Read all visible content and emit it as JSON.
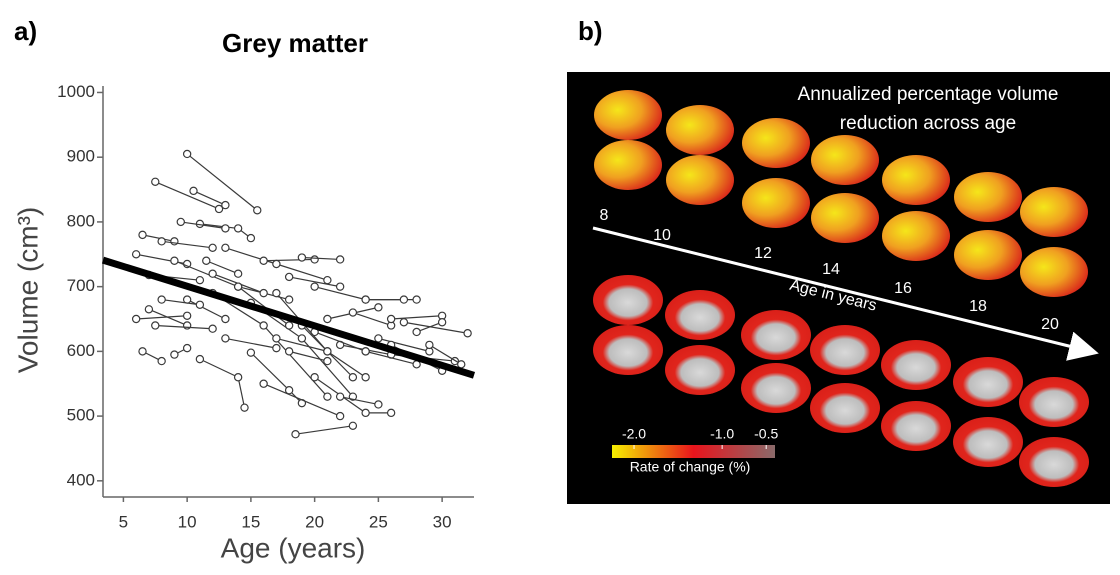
{
  "panel_labels": [
    "a)",
    "b)"
  ],
  "chart_data": {
    "type": "line",
    "title": "Grey matter",
    "xlabel": "Age (years)",
    "ylabel": "Volume (cm³)",
    "xlim": [
      3.4,
      32.5
    ],
    "ylim": [
      375,
      1010
    ],
    "xticks": [
      5,
      10,
      15,
      20,
      25,
      30
    ],
    "yticks": [
      400,
      500,
      600,
      700,
      800,
      900,
      1000
    ],
    "color": "#3a3a3a",
    "fit": {
      "x": [
        3.4,
        32.5
      ],
      "values": [
        741,
        563
      ],
      "color": "#000000"
    },
    "series": [
      {
        "x": [
          10,
          15.5
        ],
        "values": [
          905,
          818
        ]
      },
      {
        "x": [
          7.5,
          12.5
        ],
        "values": [
          862,
          820
        ]
      },
      {
        "x": [
          10.5,
          13
        ],
        "values": [
          848,
          826
        ]
      },
      {
        "x": [
          11,
          14,
          15
        ],
        "values": [
          797,
          790,
          775
        ]
      },
      {
        "x": [
          9.5,
          13
        ],
        "values": [
          800,
          790
        ]
      },
      {
        "x": [
          6.5,
          9
        ],
        "values": [
          780,
          770
        ]
      },
      {
        "x": [
          8,
          12
        ],
        "values": [
          770,
          760
        ]
      },
      {
        "x": [
          6,
          10
        ],
        "values": [
          750,
          735
        ]
      },
      {
        "x": [
          7,
          11
        ],
        "values": [
          718,
          710
        ]
      },
      {
        "x": [
          9,
          14,
          18
        ],
        "values": [
          740,
          700,
          680
        ]
      },
      {
        "x": [
          12,
          16
        ],
        "values": [
          720,
          690
        ]
      },
      {
        "x": [
          13,
          17,
          21
        ],
        "values": [
          760,
          735,
          710
        ]
      },
      {
        "x": [
          16,
          20
        ],
        "values": [
          740,
          742
        ]
      },
      {
        "x": [
          19,
          22
        ],
        "values": [
          745,
          742
        ]
      },
      {
        "x": [
          18,
          22
        ],
        "values": [
          715,
          700
        ]
      },
      {
        "x": [
          20,
          24,
          28
        ],
        "values": [
          700,
          680,
          680
        ]
      },
      {
        "x": [
          21,
          25
        ],
        "values": [
          650,
          668
        ]
      },
      {
        "x": [
          23,
          26
        ],
        "values": [
          660,
          640
        ]
      },
      {
        "x": [
          24,
          27
        ],
        "values": [
          680,
          680
        ]
      },
      {
        "x": [
          26,
          30
        ],
        "values": [
          650,
          655
        ]
      },
      {
        "x": [
          27,
          32
        ],
        "values": [
          645,
          628
        ]
      },
      {
        "x": [
          28,
          30
        ],
        "values": [
          630,
          645
        ]
      },
      {
        "x": [
          25,
          29
        ],
        "values": [
          620,
          600
        ]
      },
      {
        "x": [
          22,
          26,
          31
        ],
        "values": [
          610,
          595,
          585
        ]
      },
      {
        "x": [
          20,
          24
        ],
        "values": [
          630,
          600
        ]
      },
      {
        "x": [
          19,
          23
        ],
        "values": [
          640,
          560
        ]
      },
      {
        "x": [
          17,
          21,
          24
        ],
        "values": [
          690,
          600,
          560
        ]
      },
      {
        "x": [
          15,
          19,
          23
        ],
        "values": [
          675,
          620,
          530
        ]
      },
      {
        "x": [
          14,
          18
        ],
        "values": [
          700,
          640
        ]
      },
      {
        "x": [
          12,
          16,
          21
        ],
        "values": [
          690,
          640,
          530
        ]
      },
      {
        "x": [
          10,
          13
        ],
        "values": [
          680,
          650
        ]
      },
      {
        "x": [
          7,
          10
        ],
        "values": [
          665,
          640
        ]
      },
      {
        "x": [
          6,
          10
        ],
        "values": [
          650,
          655
        ]
      },
      {
        "x": [
          7.5,
          12
        ],
        "values": [
          640,
          635
        ]
      },
      {
        "x": [
          6.5,
          8
        ],
        "values": [
          600,
          585
        ]
      },
      {
        "x": [
          9,
          10
        ],
        "values": [
          595,
          605
        ]
      },
      {
        "x": [
          11,
          14,
          14.5
        ],
        "values": [
          588,
          560,
          513
        ]
      },
      {
        "x": [
          15,
          18,
          19
        ],
        "values": [
          598,
          540,
          520
        ]
      },
      {
        "x": [
          16,
          22
        ],
        "values": [
          550,
          500
        ]
      },
      {
        "x": [
          18.5,
          23
        ],
        "values": [
          472,
          485
        ]
      },
      {
        "x": [
          20,
          24,
          26
        ],
        "values": [
          560,
          505,
          505
        ]
      },
      {
        "x": [
          22,
          25
        ],
        "values": [
          530,
          518
        ]
      },
      {
        "x": [
          24,
          28
        ],
        "values": [
          600,
          580
        ]
      },
      {
        "x": [
          26,
          30
        ],
        "values": [
          610,
          570
        ]
      },
      {
        "x": [
          29,
          31.5
        ],
        "values": [
          610,
          580
        ]
      },
      {
        "x": [
          17,
          21
        ],
        "values": [
          620,
          600
        ]
      },
      {
        "x": [
          13,
          17
        ],
        "values": [
          620,
          605
        ]
      },
      {
        "x": [
          8,
          11
        ],
        "values": [
          680,
          672
        ]
      },
      {
        "x": [
          11.5,
          14
        ],
        "values": [
          740,
          720
        ]
      },
      {
        "x": [
          18,
          21
        ],
        "values": [
          600,
          585
        ]
      }
    ]
  },
  "panel_b": {
    "title_lines": [
      "Annualized percentage volume",
      "reduction across age"
    ],
    "age_labels": [
      "8",
      "10",
      "12",
      "14",
      "16",
      "18",
      "20"
    ],
    "arrow_label": "Age in years",
    "colorbar": {
      "ticks": [
        {
          "value": -2,
          "label": "-2.0"
        },
        {
          "value": -1,
          "label": "-1.0"
        },
        {
          "value": -0.5,
          "label": "-0.5"
        }
      ],
      "xlim": [
        -2.25,
        -0.4
      ],
      "colors": [
        "#f5f000",
        "#e8141c",
        "#8a6a6a"
      ],
      "label": "Rate of change (%)"
    }
  }
}
